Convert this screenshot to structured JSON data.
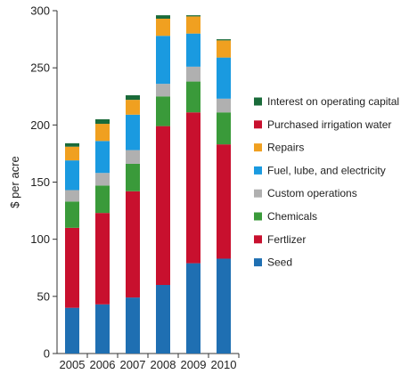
{
  "chart_data": {
    "type": "bar",
    "stacked": true,
    "categories": [
      "2005",
      "2006",
      "2007",
      "2008",
      "2009",
      "2010"
    ],
    "ylabel": "$ per acre",
    "xlabel": "",
    "ylim": [
      0,
      300
    ],
    "yticks": [
      0,
      50,
      100,
      150,
      200,
      250,
      300
    ],
    "grid": false,
    "legend_position": "right",
    "series": [
      {
        "name": "Seed",
        "color": "#1f6fb2",
        "values": [
          40,
          43,
          49,
          60,
          79,
          83
        ]
      },
      {
        "name": "Fertlizer",
        "color": "#c8102e",
        "values": [
          70,
          80,
          93,
          139,
          132,
          100
        ]
      },
      {
        "name": "Chemicals",
        "color": "#3a9a3a",
        "values": [
          23,
          24,
          24,
          26,
          27,
          28
        ]
      },
      {
        "name": "Custom operations",
        "color": "#b0b0b0",
        "values": [
          10,
          11,
          12,
          11,
          13,
          12
        ]
      },
      {
        "name": "Fuel, lube, and electricity",
        "color": "#1a9ae0",
        "values": [
          26,
          28,
          31,
          42,
          29,
          36
        ]
      },
      {
        "name": "Repairs",
        "color": "#f0a020",
        "values": [
          12,
          15,
          13,
          15,
          15,
          15
        ]
      },
      {
        "name": "Purchased irrigation water",
        "color": "#c8102e",
        "values": [
          0,
          0,
          0,
          0,
          0,
          0
        ]
      },
      {
        "name": "Interest on operating capital",
        "color": "#1a6b3a",
        "values": [
          3,
          4,
          4,
          3,
          1,
          1
        ]
      }
    ],
    "legend_order": [
      "Interest on operating capital",
      "Purchased irrigation water",
      "Repairs",
      "Fuel, lube, and electricity",
      "Custom operations",
      "Chemicals",
      "Fertlizer",
      "Seed"
    ]
  }
}
